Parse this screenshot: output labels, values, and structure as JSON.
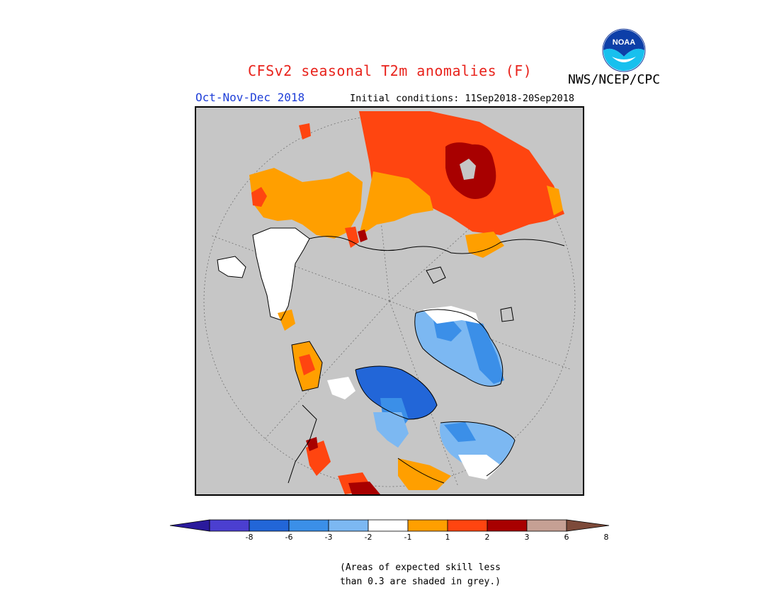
{
  "header": {
    "title": "CFSv2 seasonal T2m anomalies (F)",
    "agency": "NWS/NCEP/CPC",
    "season": "Oct-Nov-Dec 2018",
    "initial_conditions": "Initial conditions: 11Sep2018-20Sep2018"
  },
  "logo": {
    "name": "noaa-logo",
    "text": "NOAA"
  },
  "colorbar": {
    "ticks": [
      "-8",
      "-6",
      "-3",
      "-2",
      "-1",
      "1",
      "2",
      "3",
      "6",
      "8"
    ],
    "colors": [
      "#2a1a9c",
      "#4b3fd0",
      "#2266d8",
      "#3b8fe8",
      "#7cb8f2",
      "#ffffff",
      "#ff9f00",
      "#ff4510",
      "#a80000",
      "#c6a094",
      "#7d4a3a"
    ]
  },
  "map": {
    "grey_color": "#c6c6c6",
    "projection": "north-polar-stereographic"
  },
  "footnote": {
    "line1": "(Areas of expected skill less",
    "line2": "than 0.3 are shaded in grey.)"
  }
}
